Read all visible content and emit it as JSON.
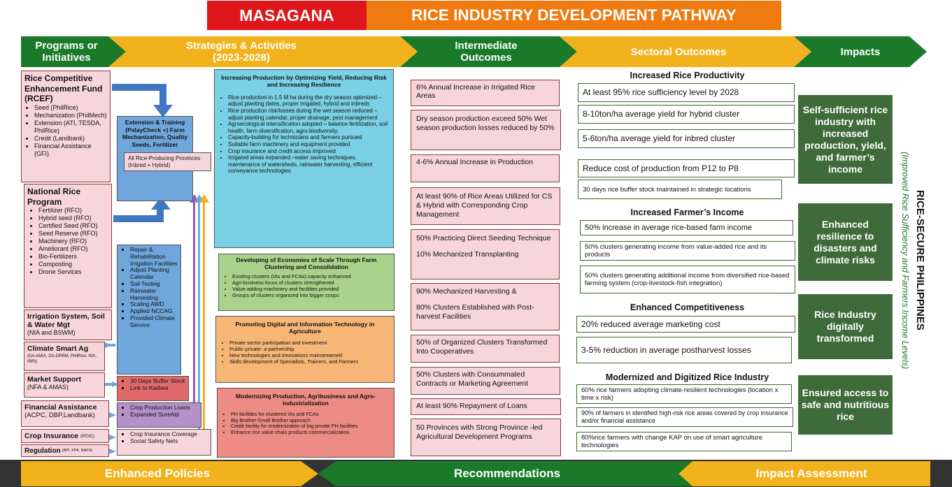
{
  "title": {
    "brand": "MASAGANA",
    "text": "RICE INDUSTRY DEVELOPMENT PATHWAY"
  },
  "columns": {
    "programs": "Programs or Initiatives",
    "strategies": "Strategies & Activities (2023-2028)",
    "intermediate": "Intermediate Outcomes",
    "sectoral": "Sectoral Outcomes",
    "impacts": "Impacts"
  },
  "programs": {
    "rcef": {
      "title": "Rice Competitive Enhancement Fund (RCEF)",
      "items": [
        "Seed (PhilRice)",
        "Mechanization (PhilMech)",
        "Extension (ATI, TESDA, PhilRice)",
        "Credit (Landbank)",
        "Financial Assistance (GFI)"
      ]
    },
    "nrp": {
      "title": "National Rice Program",
      "items": [
        "Fertilizer (RFO)",
        "Hybrid seed (RFO)",
        "Certified Seed (RFO)",
        "Seed Reserve (RFO)",
        "Machinery (RFO)",
        "Ameliorant (RFO)",
        "Bio-Fertilizers",
        "Composting",
        "Drone Services"
      ]
    },
    "irrigation": {
      "title": "Irrigation System, Soil & Water Mgt",
      "sub": "(NIA and BSWM)"
    },
    "climate": {
      "title": "Climate Smart Ag",
      "sub": "(DA-AMIA, DA-DRRM, PhilRice, NIA, IRRI)"
    },
    "market": {
      "title": "Market Support",
      "sub": "(NFA & AMAS)"
    },
    "financial": {
      "title": "Financial Assistance",
      "sub": "(ACPC, DBP,Landbank)"
    },
    "crop_ins": {
      "title": "Crop Insurance",
      "sub": "(PCIC)"
    },
    "regulation": {
      "title": "Regulation",
      "sub": "(BPI, FPA, BAFS)"
    }
  },
  "extension": {
    "title": "Extension & Training (PalayCheck +) Farm Mechanization, Quality Seeds, Fertilizer",
    "inner": "All Rice-Producing Provinces (Inbred + Hybrid)"
  },
  "sub_lists": {
    "irrigation": [
      "Repair & Rehabilitation Irrigation Facilities",
      "Adjust Planting Calendar",
      "Soil Testing",
      "Rainwater Harvesting",
      "Scaling AWD",
      "Applied NCCAG",
      "Provided Climate Service"
    ],
    "market": [
      "30 Days Buffer Stock",
      "Link to Kadiwa"
    ],
    "financial": [
      "Crop Production Loans",
      "Expanded SureAid"
    ],
    "crop_ins": [
      "Crop Insurance Coverage",
      "Social Safety Nets"
    ]
  },
  "strategies": [
    {
      "title": "Increasing Production by Optimizing Yield, Reducing Risk and Increasing Resilience",
      "items": [
        "Rice production in 1.5 M ha during the dry season optimized – adjust planting dates, proper irrigated, hybrid and inbreds",
        "Rice production risk/losses during the wet season reduced –adjust planting calendar, proper drainage, pest management",
        "Agroecological intensification adopted – balance fertilization, soil health, farm diversification, agro-biodiversity,",
        "Capacity-building for technicians and farmers pursued",
        "Suitable farm machinery and equipment provided",
        "Crop insurance and credit access improved",
        "Irrigated areas expanded –water saving techniques,  maintenance of watersheds, rainwater harvesting, efficient conveyance technologies"
      ]
    },
    {
      "title": "Developing of Economies of Scale Through Farm Clustering and Consolidation",
      "items": [
        "Existing clusters (IAs and FCAs) capacity enhanced",
        "Agri-business  focus of clusters strengthened",
        "Value-adding machinery and facilities provided",
        "Groups of clusters organized into bigger coops"
      ]
    },
    {
      "title": "Promoting Digital and Information Technology in Agriculture",
      "items": [
        "Private sector participation and investment",
        "Public-private- a partnership",
        "New technologies and innovations mainstreamed",
        "Skills development of Specialists, Trainers, and Farmers"
      ]
    },
    {
      "title": "Modernizing Production, Agribusiness and Agro-industrialization",
      "items": [
        "PH facilities for clustered IAs and FCAs",
        "Big Brother-Small Brother approach",
        "Credit facility for modernization of big private PH facilities",
        "Enhance rice value chain products commercialization"
      ]
    }
  ],
  "intermediate": [
    "6% Annual Increase in Irrigated Rice Areas",
    "Dry season production exceed 50% Wet season production losses reduced by 50%",
    "4-6% Annual Increase in Production",
    "At least 90% of Rice Areas Utilized for CS & Hybrid with Corresponding Crop Management",
    "50% Practicing Direct Seeding Technique",
    "10% Mechanized Transplanting",
    "90% Mechanized Harvesting &",
    "80% Clusters Established with Post-harvest Facilities",
    "50% of Organized Clusters Transformed Into Cooperatives",
    "50% Clusters with Consummated Contracts or Marketing Agreement",
    "At least 90% Repayment of Loans",
    "50 Provinces with Strong Province -led Agricultural Development Programs"
  ],
  "sectoral": [
    {
      "heading": "Increased Rice Productivity",
      "items": [
        "At least 95% rice sufficiency level by 2028",
        "8-10ton/ha average yield for hybrid cluster",
        "5-6ton/ha average yield for inbred cluster",
        "Reduce cost of production from P12 to P8",
        "30 days rice buffer stock maintained in strategic locations"
      ]
    },
    {
      "heading": "Increased Farmer’s Income",
      "items": [
        "50% increase in average rice-based farm income",
        "50% clusters generating income from value-added rice and its products",
        "50% clusters generating additional income from diversified rice-based farming system (crop-livestock-fish integration)"
      ]
    },
    {
      "heading": "Enhanced Competitiveness",
      "items": [
        "20% reduced average marketing cost",
        "3-5% reduction in average postharvest losses"
      ]
    },
    {
      "heading": "Modernized and Digitized Rice Industry",
      "items": [
        "60% rice farmers adopting climate-resilient technologies (location x time x risk)",
        "90% of farmers in identified high-risk rice areas covered by crop insurance and/or financial assistance",
        "80%rice farmers with change KAP on use of smart agriculture technologies"
      ]
    }
  ],
  "impacts": [
    "Self-sufficient rice industry with increased production, yield, and farmer’s income",
    "Enhanced resilience to disasters and climate risks",
    "Rice Industry digitally transformed",
    "Ensured access to safe and nutritious rice"
  ],
  "side": {
    "main": "RICE-SECURE PHILIPPINES",
    "sub": "(Improved Rice Sufficiency and Farmers Income Levels)"
  },
  "footer": {
    "left": "Enhanced Policies",
    "center": "Recommendations",
    "right": "Impact Assessment"
  },
  "colors": {
    "red": "#e0161d",
    "orange": "#ef7a0f",
    "green": "#1a7a2a",
    "yellow": "#f2b21b",
    "dark_green": "#3f6b3a",
    "pink": "#f6d5dc",
    "blue": "#6fa7dc",
    "cyan": "#7ad0e4"
  }
}
